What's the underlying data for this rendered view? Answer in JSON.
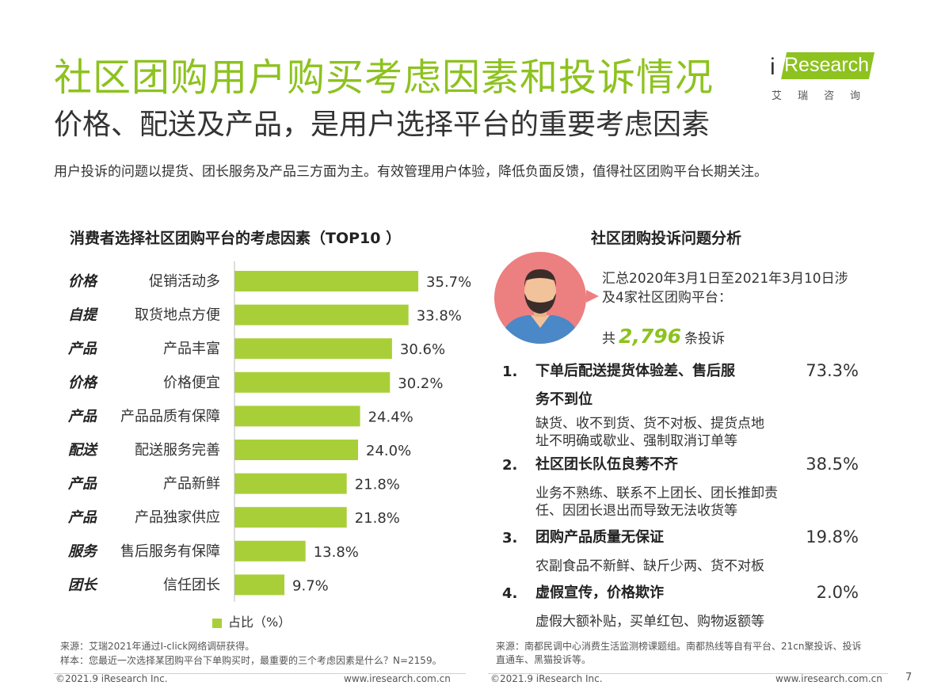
{
  "header": {
    "title": "社区团购用户购买考虑因素和投诉情况",
    "subtitle": "价格、配送及产品，是用户选择平台的重要考虑因素",
    "description": "用户投诉的问题以提货、团长服务及产品三方面为主。有效管理用户体验，降低负面反馈，值得社区团购平台长期关注。"
  },
  "logo": {
    "i": "i",
    "word": "Research",
    "cn": "艾瑞咨询"
  },
  "chart_data": {
    "type": "bar",
    "orientation": "horizontal",
    "title": "消费者选择社区团购平台的考虑因素（TOP10 ）",
    "categories": [
      "价格",
      "自提",
      "产品",
      "价格",
      "产品",
      "配送",
      "产品",
      "产品",
      "服务",
      "团长"
    ],
    "labels": [
      "促销活动多",
      "取货地点方便",
      "产品丰富",
      "价格便宜",
      "产品品质有保障",
      "配送服务完善",
      "产品新鲜",
      "产品独家供应",
      "售后服务有保障",
      "信任团长"
    ],
    "values": [
      35.7,
      33.8,
      30.6,
      30.2,
      24.4,
      24.0,
      21.8,
      21.8,
      13.8,
      9.7
    ],
    "value_labels": [
      "35.7%",
      "33.8%",
      "30.6%",
      "30.2%",
      "24.4%",
      "24.0%",
      "21.8%",
      "21.8%",
      "13.8%",
      "9.7%"
    ],
    "series": [
      {
        "name": "占比（%）"
      }
    ],
    "legend": "bottom",
    "color": "#a9cf38"
  },
  "left_notes": {
    "source": "来源：艾瑞2021年通过I-click网络调研获得。",
    "sample": "样本：您最近一次选择某团购平台下单购买时，最重要的三个考虑因素是什么？N=2159。"
  },
  "complaints": {
    "title": "社区团购投诉问题分析",
    "intro": "汇总2020年3月1日至2021年3月10日涉及4家社区团购平台：",
    "total_prefix": "共",
    "total": "2,796",
    "total_suffix": "条投诉",
    "items": [
      {
        "num": "1.",
        "title": "下单后配送提货体验差、售后服务不到位",
        "pct": "73.3%",
        "detail": "缺货、收不到货、货不对板、提货点地址不明确或歇业、强制取消订单等"
      },
      {
        "num": "2.",
        "title": "社区团长队伍良莠不齐",
        "pct": "38.5%",
        "detail": "业务不熟练、联系不上团长、团长推卸责任、因团长退出而导致无法收货等"
      },
      {
        "num": "3.",
        "title": "团购产品质量无保证",
        "pct": "19.8%",
        "detail": "农副食品不新鲜、缺斤少两、货不对板"
      },
      {
        "num": "4.",
        "title": "虚假宣传，价格欺诈",
        "pct": "2.0%",
        "detail": "虚假大额补贴，买单红包、购物返额等"
      }
    ],
    "source": "来源：南都民调中心消费生活监测榜课题组。南都热线等自有平台、21cn聚投诉、投诉直通车、黑猫投诉等。"
  },
  "footer": {
    "copyright_left": "©2021.9 iResearch Inc.",
    "url_left": "www.iresearch.com.cn",
    "copyright_right": "©2021.9 iResearch Inc.",
    "url_right": "www.iresearch.com.cn",
    "page": "7"
  },
  "colors": {
    "accent": "#8dc21f",
    "bar": "#a9cf38",
    "avatar_bg": "#ec7f80"
  }
}
